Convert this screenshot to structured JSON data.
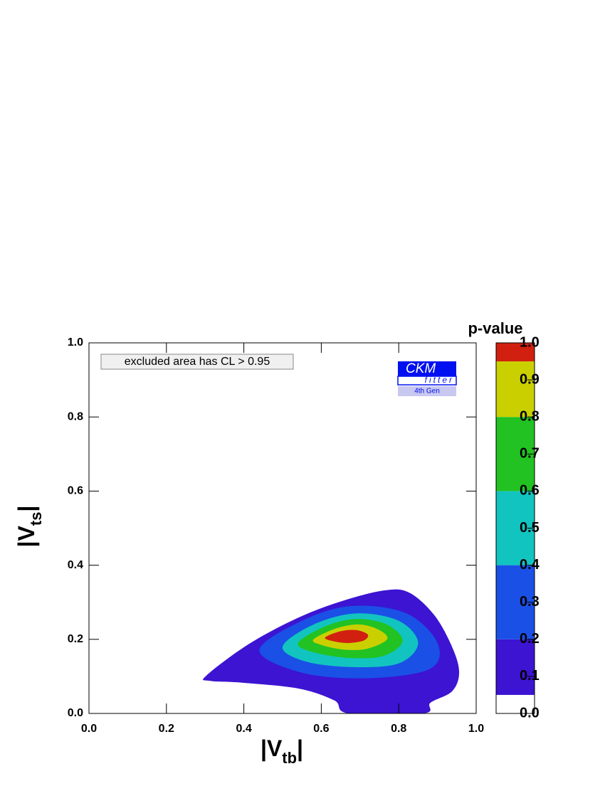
{
  "chart_data": {
    "type": "contour",
    "xlim": [
      0,
      1
    ],
    "ylim": [
      0,
      1
    ],
    "xticks": [
      {
        "value": 0,
        "label": "0.0"
      },
      0.2,
      0.4,
      0.6,
      0.8,
      {
        "value": 1,
        "label": "1.0"
      }
    ],
    "yticks": [
      {
        "value": 0,
        "label": "0.0"
      },
      0.2,
      0.4,
      0.6,
      0.8,
      {
        "value": 1,
        "label": "1.0"
      }
    ],
    "x_label": [
      "|V",
      "tb",
      "|"
    ],
    "y_label": [
      "|V",
      "ts",
      "|"
    ],
    "annotation": "excluded area has CL > 0.95",
    "logo": {
      "top": "CKM",
      "bottom": "fitter",
      "sub": "4th Gen"
    },
    "colorbar": {
      "title": "p-value",
      "lim": [
        0,
        1
      ],
      "ticks": [
        {
          "value": 0,
          "label": "0.0"
        },
        0.1,
        0.2,
        0.3,
        0.4,
        0.5,
        0.6,
        0.7,
        0.8,
        0.9,
        {
          "value": 1,
          "label": "1.0"
        }
      ]
    },
    "contours": [
      {
        "level": 0.05,
        "color": "#3c14d2",
        "x": [
          0.303,
          0.414,
          0.542,
          0.653,
          0.763,
          0.827,
          0.892,
          0.938,
          0.956,
          0.938,
          0.882,
          0.864,
          0.671,
          0.634,
          0.542,
          0.395,
          0.312
        ],
        "y": [
          0.102,
          0.188,
          0.259,
          0.303,
          0.332,
          0.326,
          0.265,
          0.179,
          0.111,
          0.06,
          0.029,
          0,
          0,
          0.035,
          0.067,
          0.083,
          0.088
        ]
      },
      {
        "level": 0.2,
        "color": "#1a50e6",
        "x": [
          0.44,
          0.55,
          0.68,
          0.82,
          0.9,
          0.88,
          0.72,
          0.55
        ],
        "y": [
          0.17,
          0.25,
          0.29,
          0.27,
          0.19,
          0.12,
          0.095,
          0.11
        ]
      },
      {
        "level": 0.4,
        "color": "#12c4c0",
        "x": [
          0.5,
          0.58,
          0.69,
          0.8,
          0.85,
          0.8,
          0.68,
          0.56
        ],
        "y": [
          0.18,
          0.24,
          0.27,
          0.25,
          0.19,
          0.135,
          0.125,
          0.14
        ]
      },
      {
        "level": 0.6,
        "color": "#22c222",
        "x": [
          0.54,
          0.61,
          0.69,
          0.77,
          0.81,
          0.76,
          0.67,
          0.58
        ],
        "y": [
          0.19,
          0.235,
          0.255,
          0.24,
          0.195,
          0.155,
          0.15,
          0.165
        ]
      },
      {
        "level": 0.8,
        "color": "#cad000",
        "x": [
          0.58,
          0.64,
          0.7,
          0.75,
          0.77,
          0.72,
          0.66,
          0.6
        ],
        "y": [
          0.2,
          0.23,
          0.24,
          0.225,
          0.2,
          0.175,
          0.172,
          0.185
        ]
      },
      {
        "level": 0.95,
        "color": "#d22010",
        "x": [
          0.61,
          0.65,
          0.69,
          0.72,
          0.71,
          0.67,
          0.63
        ],
        "y": [
          0.205,
          0.222,
          0.225,
          0.213,
          0.197,
          0.19,
          0.195
        ]
      }
    ]
  }
}
